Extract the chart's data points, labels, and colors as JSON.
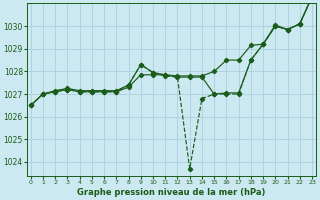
{
  "hours": [
    0,
    1,
    2,
    3,
    4,
    5,
    6,
    7,
    8,
    9,
    10,
    11,
    12,
    13,
    14,
    15,
    16,
    17,
    18,
    19,
    20,
    21,
    22,
    23
  ],
  "series_dashed": [
    1026.5,
    1027.0,
    1027.1,
    1027.2,
    1027.1,
    1027.1,
    1027.1,
    1027.1,
    1027.4,
    1028.3,
    1027.95,
    1027.8,
    1027.75,
    1023.7,
    1026.8,
    1027.0,
    1027.0,
    1027.0,
    1028.5,
    1029.2,
    1030.0,
    1029.85,
    1030.1,
    1031.3
  ],
  "series_solid_top": [
    1026.5,
    1027.0,
    1027.15,
    1027.25,
    1027.15,
    1027.15,
    1027.15,
    1027.15,
    1027.4,
    1028.3,
    1027.95,
    1027.85,
    1027.8,
    1027.8,
    1027.8,
    1028.0,
    1028.5,
    1028.5,
    1029.15,
    1029.2,
    1030.05,
    1029.85,
    1030.1,
    1031.3
  ],
  "series_solid_bottom": [
    1026.5,
    1027.0,
    1027.1,
    1027.2,
    1027.1,
    1027.1,
    1027.1,
    1027.1,
    1027.3,
    1027.85,
    1027.85,
    1027.85,
    1027.75,
    1027.75,
    1027.75,
    1027.0,
    1027.05,
    1027.05,
    1028.5,
    1029.2,
    1030.0,
    1029.85,
    1030.1,
    1031.3
  ],
  "line_color": "#1a5c1a",
  "bg_color": "#cce8f0",
  "grid_color": "#aacfdf",
  "yticks": [
    1024,
    1025,
    1026,
    1027,
    1028,
    1029,
    1030
  ],
  "xticks": [
    0,
    1,
    2,
    3,
    4,
    5,
    6,
    7,
    8,
    9,
    10,
    11,
    12,
    13,
    14,
    15,
    16,
    17,
    18,
    19,
    20,
    21,
    22,
    23
  ],
  "xlim": [
    -0.3,
    23.3
  ],
  "ylim": [
    1023.4,
    1031.0
  ],
  "xlabel": "Graphe pression niveau de la mer (hPa)"
}
